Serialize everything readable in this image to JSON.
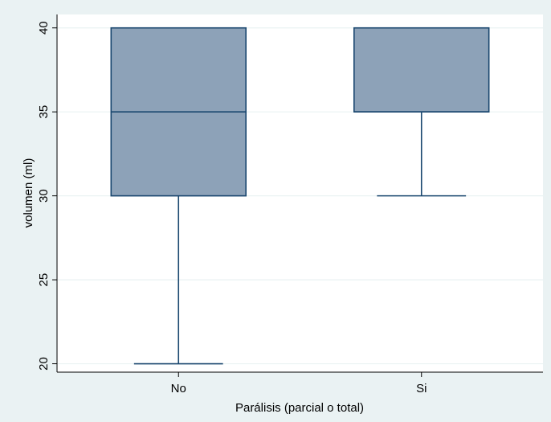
{
  "chart_data": {
    "type": "box",
    "xlabel": "Parálisis (parcial o total)",
    "ylabel": "volumen (ml)",
    "ylim": [
      19.5,
      40.8
    ],
    "yticks": [
      20,
      25,
      30,
      35,
      40
    ],
    "grid": true,
    "categories": [
      "No",
      "Si"
    ],
    "boxes": [
      {
        "category": "No",
        "whisker_low": 20,
        "q1": 30,
        "median": 35,
        "q3": 40,
        "whisker_high": 40
      },
      {
        "category": "Si",
        "whisker_low": 30,
        "q1": 35,
        "median": 35,
        "q3": 40,
        "whisker_high": 40
      }
    ],
    "colors": {
      "box_fill": "#8da2b8",
      "box_stroke": "#1a476f",
      "grid": "#eaf2f3",
      "plot_bg": "#ffffff",
      "outer_bg": "#eaf2f3"
    }
  }
}
